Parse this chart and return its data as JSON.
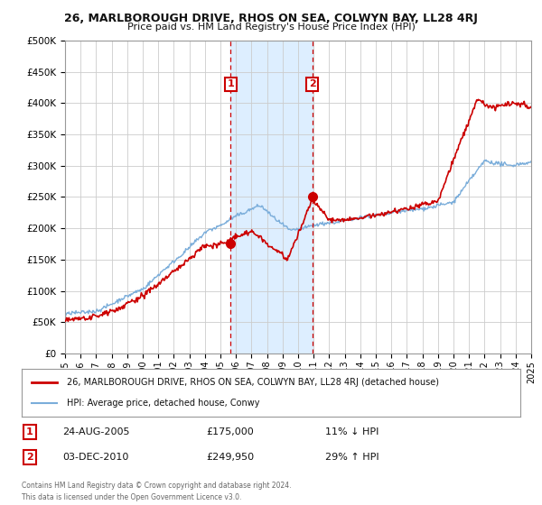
{
  "title": "26, MARLBOROUGH DRIVE, RHOS ON SEA, COLWYN BAY, LL28 4RJ",
  "subtitle": "Price paid vs. HM Land Registry's House Price Index (HPI)",
  "legend_label_red": "26, MARLBOROUGH DRIVE, RHOS ON SEA, COLWYN BAY, LL28 4RJ (detached house)",
  "legend_label_blue": "HPI: Average price, detached house, Conwy",
  "transactions": [
    {
      "label": "1",
      "date": "24-AUG-2005",
      "price": 175000,
      "price_str": "£175,000",
      "hpi_relation": "11% ↓ HPI",
      "x": 2005.65
    },
    {
      "label": "2",
      "date": "03-DEC-2010",
      "price": 249950,
      "price_str": "£249,950",
      "hpi_relation": "29% ↑ HPI",
      "x": 2010.92
    }
  ],
  "footnote1": "Contains HM Land Registry data © Crown copyright and database right 2024.",
  "footnote2": "This data is licensed under the Open Government Licence v3.0.",
  "ylim": [
    0,
    500000
  ],
  "yticks": [
    0,
    50000,
    100000,
    150000,
    200000,
    250000,
    300000,
    350000,
    400000,
    450000,
    500000
  ],
  "xmin": 1995,
  "xmax": 2025,
  "red_color": "#cc0000",
  "blue_color": "#7aadda",
  "highlight_fill": "#ddeeff",
  "grid_color": "#cccccc",
  "bg_color": "#ffffff",
  "tx1_y": 175000,
  "tx2_y": 249950
}
